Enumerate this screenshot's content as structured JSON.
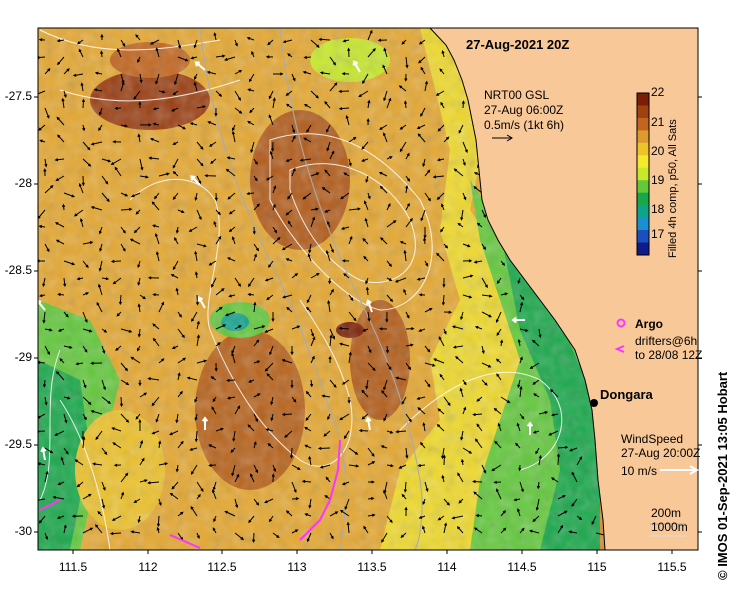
{
  "header": {
    "timestamp": "27-Aug-2021 20Z"
  },
  "current_legend": {
    "line1": "NRT00 GSL",
    "line2": "27-Aug 06:00Z",
    "line3": "0.5m/s (1kt 6h)"
  },
  "colorbar": {
    "title": "Filled 4h comp, p50, All Sats",
    "ticks": [
      "22",
      "21",
      "20",
      "19",
      "18",
      "17"
    ],
    "colors": [
      "#7a1e05",
      "#a0420f",
      "#c2651e",
      "#dd9a2e",
      "#eec22a",
      "#f6e92b",
      "#c7e82b",
      "#62c93b",
      "#18a84a",
      "#10a38c",
      "#1c8fd0",
      "#1b4fbf",
      "#101a8a"
    ]
  },
  "argo_legend": {
    "title": "Argo",
    "line1": "drifters@6h",
    "line2": "to 28/08 12Z",
    "marker_color": "#ff33ff"
  },
  "place": {
    "name": "Dongara"
  },
  "wind_legend": {
    "title": "WindSpeed",
    "time": "27-Aug 20:00Z",
    "speed": "10 m/s"
  },
  "contour_legend": {
    "line1": "200m",
    "line2": "1000m"
  },
  "axes": {
    "y_ticks": [
      "-27.5",
      "-28",
      "-28.5",
      "-29",
      "-29.5",
      "-30"
    ],
    "x_ticks": [
      "111.5",
      "112",
      "112.5",
      "113",
      "113.5",
      "114",
      "114.5",
      "115",
      "115.5"
    ]
  },
  "credit": "© IMOS 01-Sep-2021 13:05 Hobart",
  "colors": {
    "land": "#f9c898",
    "arrow": "#000000",
    "contour": "#ffffff",
    "isobath": "#aaaaaa",
    "argo": "#ff33ff"
  }
}
